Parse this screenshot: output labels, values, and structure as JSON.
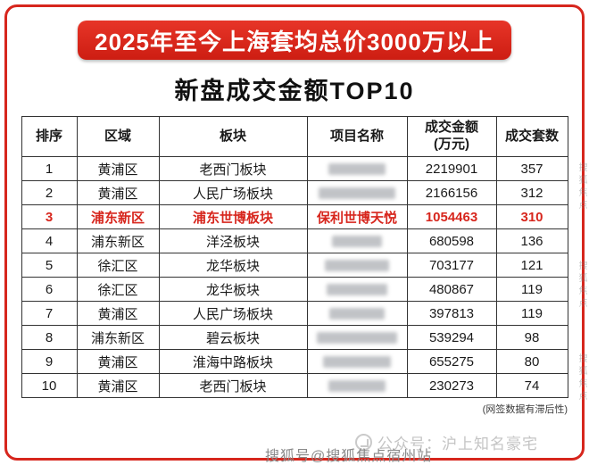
{
  "banner": {
    "title": "2025年至今上海套均总价3000万以上"
  },
  "title": "新盘成交金额TOP10",
  "table": {
    "headers": {
      "rank": "排序",
      "district": "区域",
      "plate": "板块",
      "project": "项目名称",
      "amount": "成交金额\n(万元)",
      "units": "成交套数"
    },
    "rows": [
      {
        "rank": "1",
        "district": "黄浦区",
        "plate": "老西门板块",
        "project": "",
        "amount": "2219901",
        "units": "357",
        "highlight": false
      },
      {
        "rank": "2",
        "district": "黄浦区",
        "plate": "人民广场板块",
        "project": "",
        "amount": "2166156",
        "units": "312",
        "highlight": false
      },
      {
        "rank": "3",
        "district": "浦东新区",
        "plate": "浦东世博板块",
        "project": "保利世博天悦",
        "amount": "1054463",
        "units": "310",
        "highlight": true
      },
      {
        "rank": "4",
        "district": "浦东新区",
        "plate": "洋泾板块",
        "project": "",
        "amount": "680598",
        "units": "136",
        "highlight": false
      },
      {
        "rank": "5",
        "district": "徐汇区",
        "plate": "龙华板块",
        "project": "",
        "amount": "703177",
        "units": "121",
        "highlight": false
      },
      {
        "rank": "6",
        "district": "徐汇区",
        "plate": "龙华板块",
        "project": "",
        "amount": "480867",
        "units": "119",
        "highlight": false
      },
      {
        "rank": "7",
        "district": "黄浦区",
        "plate": "人民广场板块",
        "project": "",
        "amount": "397813",
        "units": "119",
        "highlight": false
      },
      {
        "rank": "8",
        "district": "浦东新区",
        "plate": "碧云板块",
        "project": "",
        "amount": "539294",
        "units": "98",
        "highlight": false
      },
      {
        "rank": "9",
        "district": "黄浦区",
        "plate": "淮海中路板块",
        "project": "",
        "amount": "655275",
        "units": "80",
        "highlight": false
      },
      {
        "rank": "10",
        "district": "黄浦区",
        "plate": "老西门板块",
        "project": "",
        "amount": "230273",
        "units": "74",
        "highlight": false
      }
    ]
  },
  "footnote": "(网签数据有滞后性)",
  "watermarks": {
    "account": "公众号：沪上知名豪宅",
    "bottom": "搜狐号@搜狐焦点宿州站",
    "side": "搜狐焦点"
  },
  "colors": {
    "accent_red": "#d7261d",
    "highlight_red": "#d7261d"
  }
}
